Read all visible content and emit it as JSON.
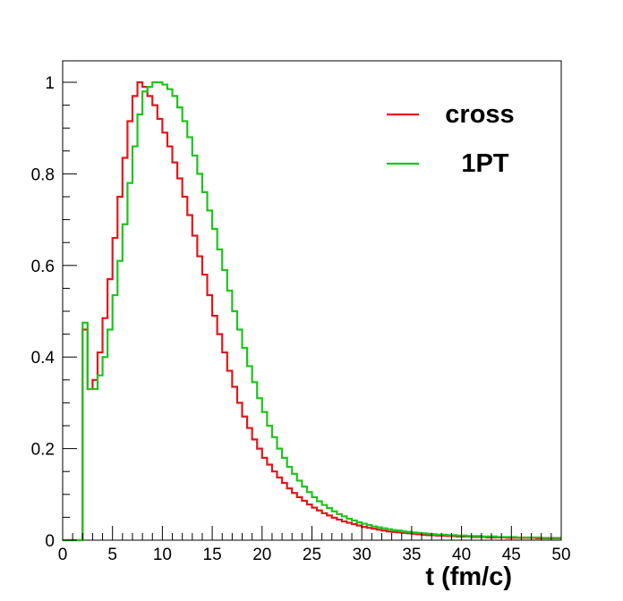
{
  "chart_data": {
    "type": "line",
    "style": "step-histogram",
    "xlabel": "t (fm/c)",
    "ylabel": "",
    "xlim": [
      0,
      50
    ],
    "ylim": [
      0,
      1.05
    ],
    "x_ticks": [
      "0",
      "5",
      "10",
      "15",
      "20",
      "25",
      "30",
      "35",
      "40",
      "45",
      "50"
    ],
    "y_ticks": [
      "0",
      "0.2",
      "0.4",
      "0.6",
      "0.8",
      "1"
    ],
    "grid": false,
    "legend_placement": "top-right",
    "bin_width": 0.5,
    "series": [
      {
        "name": "cross",
        "color": "#e3161b",
        "values": [
          0,
          0,
          0,
          0,
          0.46,
          0.33,
          0.35,
          0.41,
          0.485,
          0.57,
          0.66,
          0.75,
          0.835,
          0.915,
          0.97,
          1.0,
          0.99,
          0.97,
          0.95,
          0.92,
          0.89,
          0.86,
          0.825,
          0.79,
          0.75,
          0.71,
          0.665,
          0.62,
          0.58,
          0.535,
          0.49,
          0.45,
          0.41,
          0.37,
          0.335,
          0.3,
          0.27,
          0.245,
          0.22,
          0.2,
          0.18,
          0.165,
          0.15,
          0.137,
          0.125,
          0.113,
          0.103,
          0.094,
          0.086,
          0.078,
          0.071,
          0.065,
          0.059,
          0.054,
          0.049,
          0.045,
          0.041,
          0.038,
          0.035,
          0.032,
          0.029,
          0.027,
          0.025,
          0.023,
          0.021,
          0.019,
          0.018,
          0.017,
          0.016,
          0.015,
          0.014,
          0.013,
          0.012,
          0.011,
          0.011,
          0.01,
          0.01,
          0.009,
          0.009,
          0.008,
          0.008,
          0.008,
          0.007,
          0.007,
          0.007,
          0.006,
          0.006,
          0.006,
          0.006,
          0.005,
          0.005,
          0.005,
          0.005,
          0.005,
          0.005,
          0.004,
          0.004,
          0.004,
          0.004,
          0.004
        ]
      },
      {
        "name": "1PT",
        "color": "#1ec41e",
        "values": [
          0,
          0,
          0,
          0,
          0.475,
          0.33,
          0.33,
          0.36,
          0.4,
          0.46,
          0.535,
          0.61,
          0.69,
          0.78,
          0.86,
          0.93,
          0.98,
          0.99,
          1.0,
          1.0,
          0.995,
          0.985,
          0.97,
          0.945,
          0.915,
          0.88,
          0.84,
          0.8,
          0.76,
          0.72,
          0.68,
          0.635,
          0.59,
          0.545,
          0.5,
          0.46,
          0.42,
          0.38,
          0.345,
          0.31,
          0.28,
          0.25,
          0.225,
          0.2,
          0.18,
          0.16,
          0.145,
          0.13,
          0.117,
          0.105,
          0.094,
          0.085,
          0.077,
          0.07,
          0.063,
          0.057,
          0.052,
          0.047,
          0.043,
          0.039,
          0.036,
          0.033,
          0.03,
          0.028,
          0.026,
          0.024,
          0.022,
          0.021,
          0.019,
          0.018,
          0.017,
          0.016,
          0.015,
          0.014,
          0.013,
          0.012,
          0.012,
          0.011,
          0.011,
          0.01,
          0.01,
          0.009,
          0.009,
          0.009,
          0.008,
          0.008,
          0.008,
          0.007,
          0.007,
          0.007,
          0.007,
          0.006,
          0.006,
          0.006,
          0.006,
          0.006,
          0.005,
          0.005,
          0.005,
          0.005
        ]
      }
    ]
  }
}
